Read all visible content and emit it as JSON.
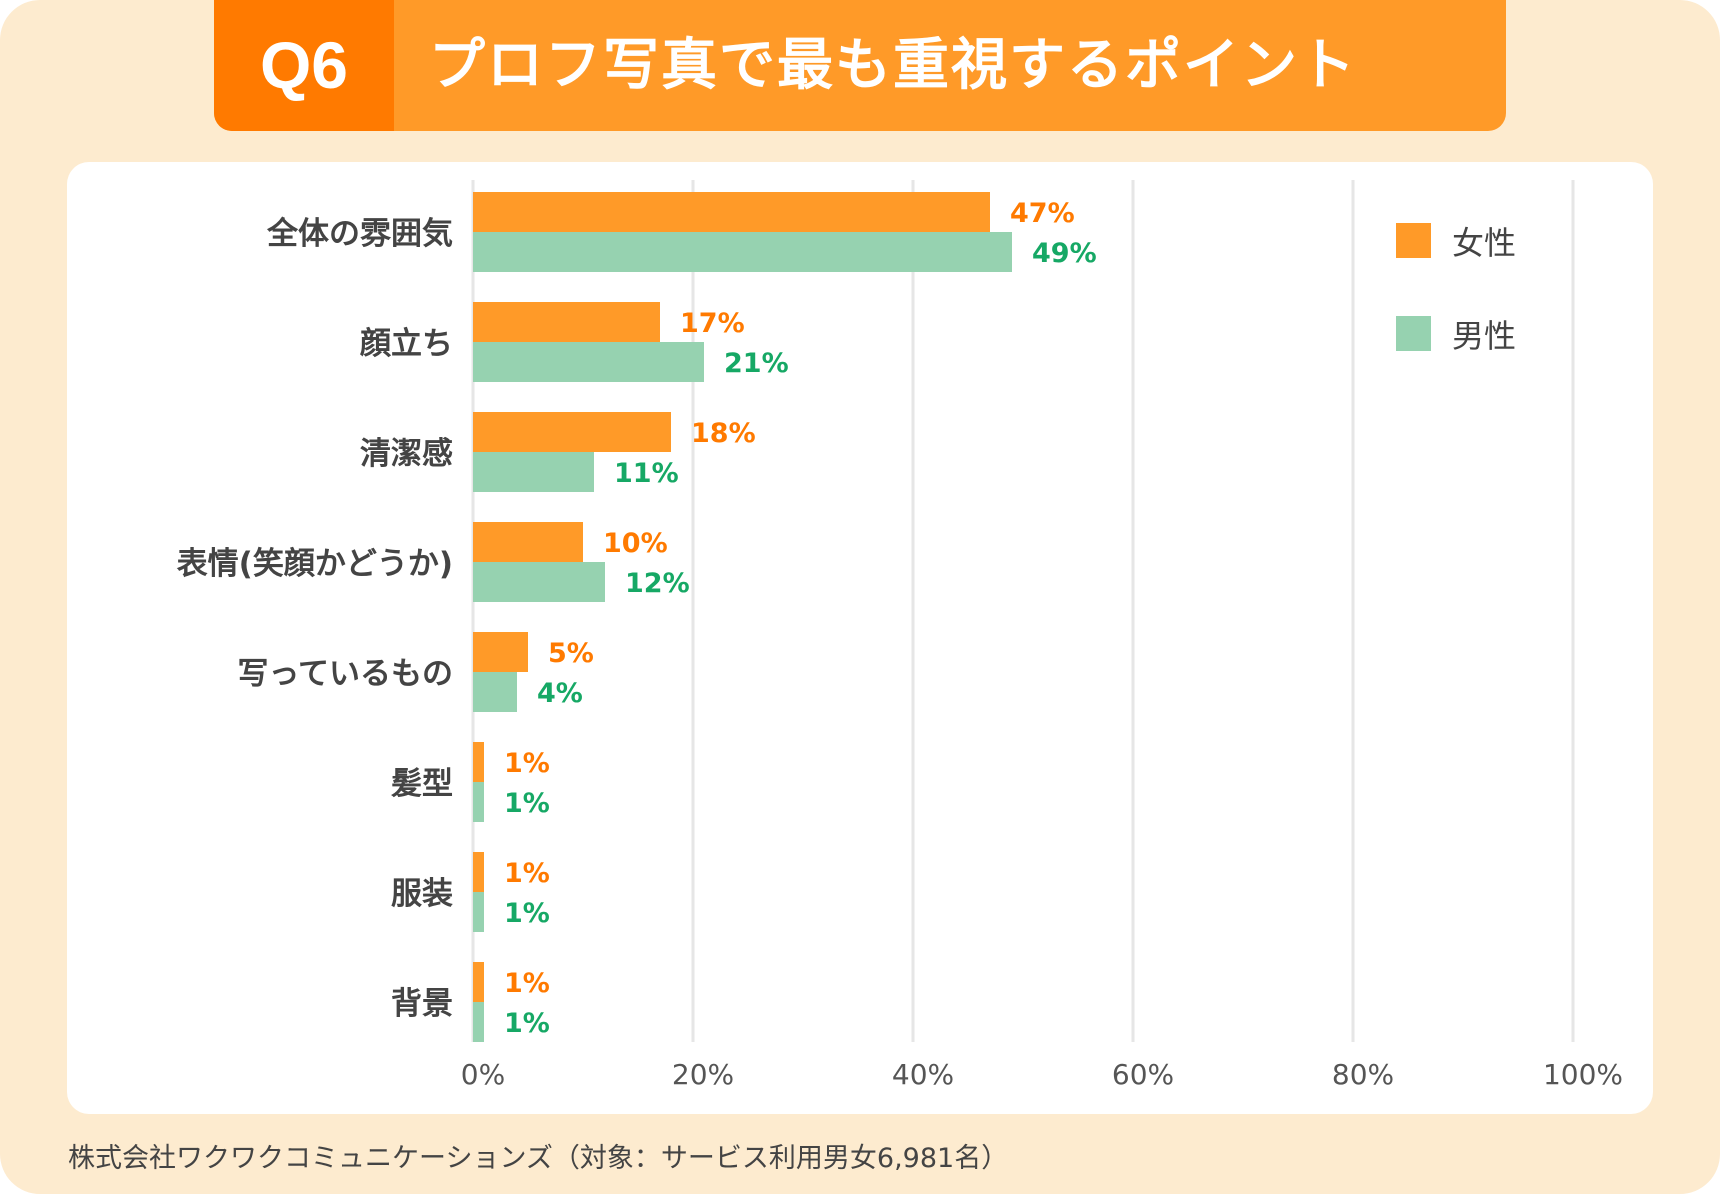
{
  "header": {
    "question": "Q6",
    "title": "プロフ写真で最も重視するポイント"
  },
  "footer": "株式会社ワクワクコミュニケーションズ（対象：サービス利用男女6,981名）",
  "colors": {
    "female": "#ff9a28",
    "male": "#96d2b0",
    "female_label": "#ff7a00",
    "male_label": "#16a865",
    "background": "#fdebcf"
  },
  "chart_data": {
    "type": "bar",
    "orientation": "horizontal",
    "categories": [
      "全体の雰囲気",
      "顔立ち",
      "清潔感",
      "表情(笑顔かどうか)",
      "写っているもの",
      "髪型",
      "服装",
      "背景"
    ],
    "series": [
      {
        "name": "女性",
        "values": [
          47,
          17,
          18,
          10,
          5,
          1,
          1,
          1
        ],
        "labels": [
          "47%",
          "17%",
          "18%",
          "10%",
          "5%",
          "1%",
          "1%",
          "1%"
        ]
      },
      {
        "name": "男性",
        "values": [
          49,
          21,
          11,
          12,
          4,
          1,
          1,
          1
        ],
        "labels": [
          "49%",
          "21%",
          "11%",
          "12%",
          "4%",
          "1%",
          "1%",
          "1%"
        ]
      }
    ],
    "xlim": [
      0,
      100
    ],
    "xticks": [
      "0%",
      "20%",
      "40%",
      "60%",
      "80%",
      "100%"
    ],
    "grid": true,
    "legend": "top-right"
  }
}
